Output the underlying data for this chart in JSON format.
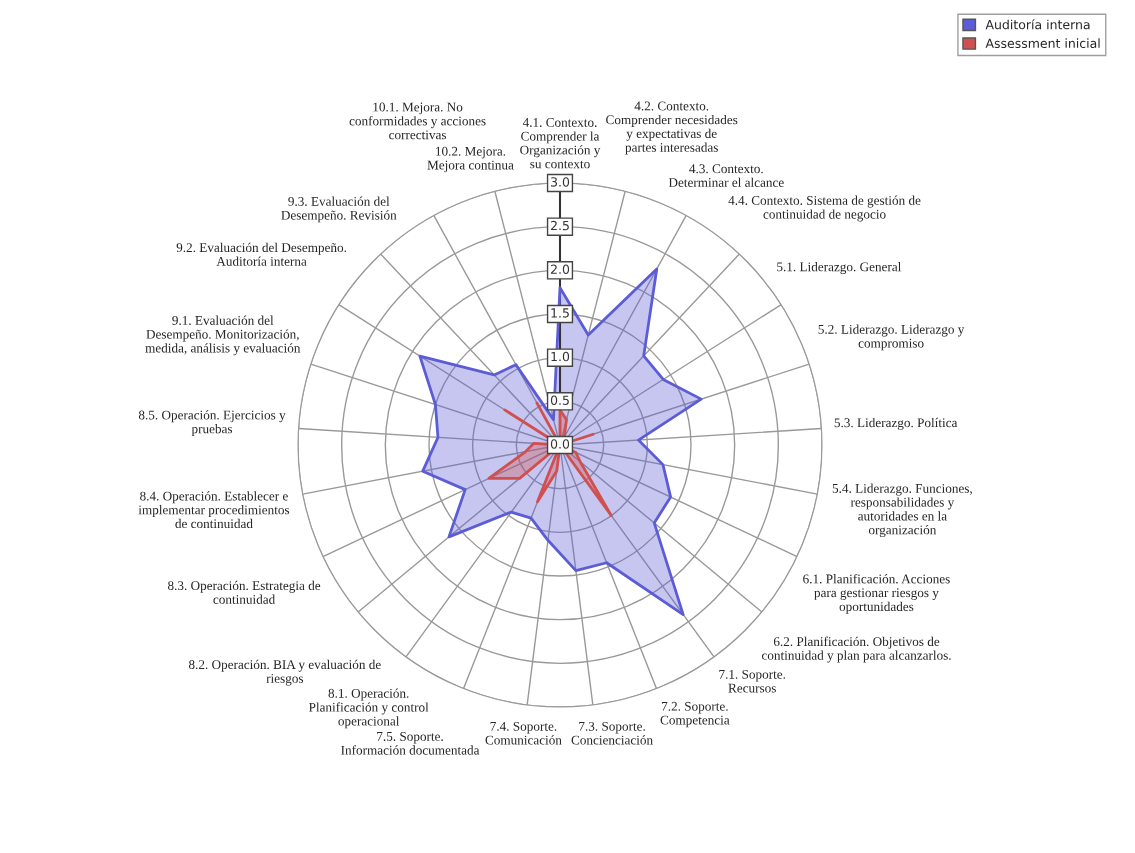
{
  "chart_data": {
    "type": "radar",
    "categories": [
      "4.1. Contexto.\nComprender la\nOrganización y\nsu contexto",
      "4.2. Contexto.\nComprender necesidades\ny expectativas de\npartes interesadas",
      "4.3. Contexto.\nDeterminar el alcance",
      "4.4. Contexto. Sistema de gestión de\ncontinuidad de negocio",
      "5.1. Liderazgo. General",
      "5.2. Liderazgo. Liderazgo y\ncompromiso",
      "5.3. Liderazgo. Política",
      "5.4. Liderazgo. Funciones,\nresponsabilidades y\nautoridades en la\norganización",
      "6.1. Planificación. Acciones\npara gestionar riesgos y\noportunidades",
      "6.2. Planificación. Objetivos de\ncontinuidad y plan para alcanzarlos.",
      "7.1. Soporte.\nRecursos",
      "7.2. Soporte.\nCompetencia",
      "7.3. Soporte.\nConcienciación",
      "7.4. Soporte.\nComunicación",
      "7.5. Soporte.\nInformación documentada",
      "8.1. Operación.\nPlanificación y control\noperacional",
      "8.2. Operación. BIA y evaluación de\nriesgos",
      "8.3. Operación. Estrategia de\ncontinuidad",
      "8.4. Operación. Establecer e\nimplementar procedimientos\nde continuidad",
      "8.5. Operación. Ejercicios y\npruebas",
      "9.1. Evaluación del\nDesempeño. Monitorización,\nmedida, análisis y evaluación",
      "9.2. Evaluación del Desempeño.\nAuditoría interna",
      "9.3. Evaluación del\nDesempeño. Revisión",
      "10.1. Mejora. No\nconformidades y acciones\ncorrectivas",
      "10.2. Mejora.\nMejora continua"
    ],
    "series": [
      {
        "name": "Auditoría interna",
        "color": "#5c5cd6",
        "values": [
          1.8,
          1.3,
          2.3,
          1.4,
          1.4,
          1.7,
          0.9,
          1.2,
          1.4,
          1.4,
          2.4,
          1.45,
          1.45,
          1.1,
          0.9,
          0.95,
          1.65,
          1.2,
          1.6,
          1.4,
          1.5,
          1.9,
          1.1,
          1.05,
          0.3
        ]
      },
      {
        "name": "Assessment inicial",
        "color": "#d05050",
        "values": [
          0.4,
          0.3,
          0.1,
          0,
          0,
          0.4,
          0,
          0,
          0.2,
          0.3,
          1.0,
          0,
          0,
          0.3,
          0.7,
          0,
          0.6,
          0.9,
          0.4,
          0.3,
          0,
          0.75,
          0,
          0.55,
          0
        ]
      }
    ],
    "ylim": [
      0,
      3
    ],
    "yticks": [
      {
        "value": 0,
        "label": "0.0"
      },
      0.5,
      {
        "value": 1,
        "label": "1.0"
      },
      1.5,
      {
        "value": 2,
        "label": "2.0"
      },
      2.5,
      {
        "value": 3,
        "label": "3.0"
      }
    ],
    "grid": true,
    "legend": "top right"
  }
}
